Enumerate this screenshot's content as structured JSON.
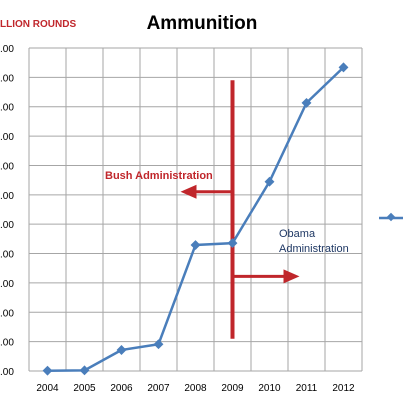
{
  "chart_data": {
    "type": "line",
    "title": "Ammunition",
    "unit_label": "LLION ROUNDS",
    "xlabel": "",
    "ylabel": "",
    "categories": [
      "2004",
      "2005",
      "2006",
      "2007",
      "2008",
      "2009",
      "2010",
      "2011",
      "2012"
    ],
    "series": [
      {
        "values": [
          0.01,
          0.02,
          0.65,
          0.83,
          3.9,
          3.96,
          5.86,
          8.3,
          9.4
        ]
      }
    ],
    "y_tick_labels": [
      ".00",
      ".00",
      ".00",
      ".00",
      ".00",
      ".00",
      ".00",
      ".00",
      ".00",
      ".00",
      ".00",
      ".00"
    ],
    "ylim": [
      0,
      10
    ],
    "grid": true,
    "annotations": {
      "bush": "Bush Administration",
      "obama_line1": "Obama",
      "obama_line2": "Administration"
    },
    "divider_year": "2009",
    "colors": {
      "series": "#4a7ebb",
      "annotation": "#c0262b",
      "grid": "#a6a6a6"
    }
  }
}
